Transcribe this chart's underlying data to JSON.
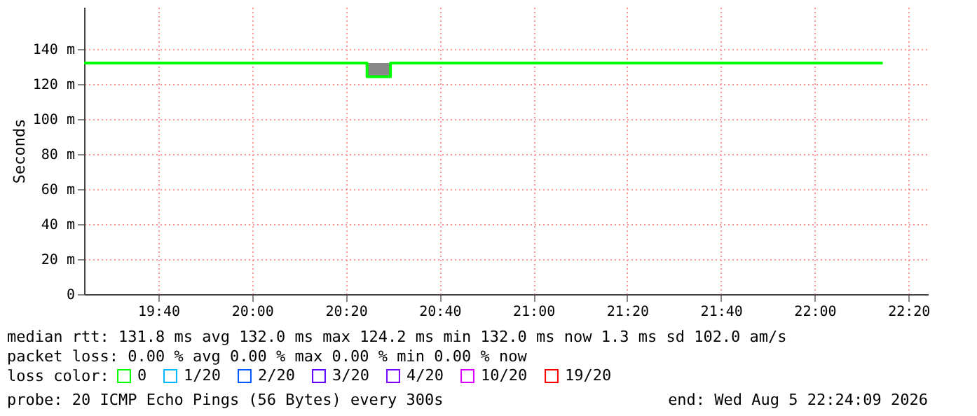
{
  "chart_data": {
    "type": "step",
    "ylabel": "Seconds",
    "x": [
      "2026-08-05T19:24:09",
      "2026-08-05T20:24:30",
      "2026-08-05T20:29:30",
      "2026-08-05T22:14:30"
    ],
    "series": [
      {
        "name": "0",
        "color": "#00ff00",
        "values": [
          132,
          124.2,
          132,
          132
        ],
        "lower": [
          null,
          124.2,
          132,
          null
        ],
        "upper": [
          null,
          132,
          132,
          null
        ]
      },
      {
        "name": "1/20",
        "color": "#00b8ff",
        "values": [
          null,
          null,
          null,
          null
        ]
      },
      {
        "name": "2/20",
        "color": "#0059ff",
        "values": [
          null,
          null,
          null,
          null
        ]
      },
      {
        "name": "3/20",
        "color": "#5e00ff",
        "values": [
          null,
          null,
          null,
          null
        ]
      },
      {
        "name": "4/20",
        "color": "#7e00ff",
        "values": [
          null,
          null,
          null,
          null
        ]
      },
      {
        "name": "10/20",
        "color": "#dd00ff",
        "values": [
          null,
          null,
          null,
          null
        ]
      },
      {
        "name": "19/20",
        "color": "#ff0000",
        "values": [
          null,
          null,
          null,
          null
        ]
      }
    ],
    "legend_title": "loss color:",
    "legend": "bottom left",
    "xlim": [
      "2026-08-05T19:24:09",
      "2026-08-05T22:24:09"
    ],
    "xticks": [
      {
        "value": "2026-08-05T19:40",
        "label": "19:40"
      },
      {
        "value": "2026-08-05T20:00",
        "label": "20:00"
      },
      {
        "value": "2026-08-05T20:20",
        "label": "20:20"
      },
      {
        "value": "2026-08-05T20:40",
        "label": "20:40"
      },
      {
        "value": "2026-08-05T21:00",
        "label": "21:00"
      },
      {
        "value": "2026-08-05T21:20",
        "label": "21:20"
      },
      {
        "value": "2026-08-05T21:40",
        "label": "21:40"
      },
      {
        "value": "2026-08-05T22:00",
        "label": "22:00"
      },
      {
        "value": "2026-08-05T22:20",
        "label": "22:20"
      }
    ],
    "ylim": [
      0,
      164
    ],
    "yticks": [
      0,
      {
        "value": 20,
        "label": "20 m"
      },
      {
        "value": 40,
        "label": "40 m"
      },
      {
        "value": 60,
        "label": "60 m"
      },
      {
        "value": 80,
        "label": "80 m"
      },
      {
        "value": 100,
        "label": "100 m"
      },
      {
        "value": 120,
        "label": "120 m"
      },
      {
        "value": 140,
        "label": "140 m"
      }
    ],
    "grid": true,
    "annotations": [
      "median rtt:  131.8 ms avg  132.0 ms max  124.2 ms min  132.0 ms now  1.3 ms sd  102.0   am/s",
      "packet loss: 0.00 % avg  0.00 % max  0.00 % min  0.00 % now",
      "probe:       20 ICMP Echo Pings (56 Bytes) every 300s",
      "end: Wed Aug  5 22:24:09 2026"
    ]
  }
}
